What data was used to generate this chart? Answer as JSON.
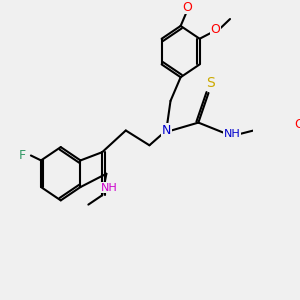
{
  "bg_color": "#f0f0f0",
  "bond_color": "#000000",
  "bond_width": 1.5,
  "atom_colors": {
    "N": "#cc00cc",
    "N2": "#0000cc",
    "O": "#ff0000",
    "F": "#339966",
    "S": "#ccaa00",
    "H_label": "#cc00cc",
    "C": "#000000"
  }
}
